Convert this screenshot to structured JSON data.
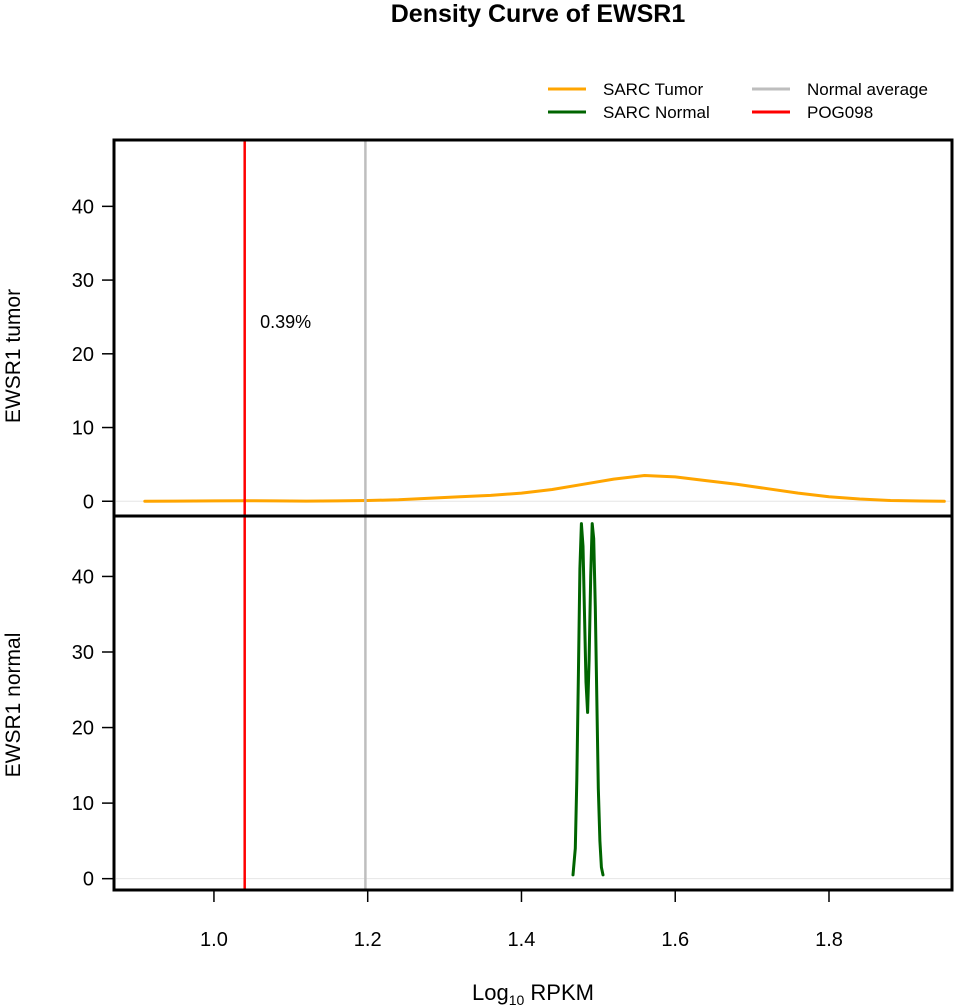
{
  "chart_data": {
    "type": "line",
    "title": "Density Curve of  EWSR1",
    "xlabel": {
      "base": "Log",
      "sub": "10",
      "rest": " RPKM"
    },
    "xlim": [
      0.87,
      1.96
    ],
    "x_ticks": [
      1.0,
      1.2,
      1.4,
      1.6,
      1.8
    ],
    "x_tick_labels": [
      "1.0",
      "1.2",
      "1.4",
      "1.6",
      "1.8"
    ],
    "legend": {
      "placement": "top-right",
      "items": [
        {
          "label": "SARC  Tumor",
          "color": "#FFA500"
        },
        {
          "label": "SARC  Normal",
          "color": "#006400"
        },
        {
          "label": "Normal  average",
          "color": "#BEBEBE"
        },
        {
          "label": "POG098",
          "color": "#FF0000"
        }
      ]
    },
    "vlines": [
      {
        "name": "Normal average",
        "x": 1.197,
        "color": "#BEBEBE"
      },
      {
        "name": "POG098",
        "x": 1.04,
        "color": "#FF0000"
      }
    ],
    "panels": [
      {
        "ylabel": "EWSR1  tumor",
        "ylim": [
          -2,
          49
        ],
        "y_ticks": [
          0,
          10,
          20,
          30,
          40
        ],
        "y_tick_labels": [
          "0",
          "10",
          "20",
          "30",
          "40"
        ],
        "annotation": {
          "text": "0.39%",
          "x": 1.06,
          "y": 23.5,
          "color": "#FF0000"
        },
        "series": [
          {
            "name": "SARC  Tumor",
            "color": "#FFA500",
            "x": [
              0.91,
              0.95,
              1.0,
              1.04,
              1.08,
              1.12,
              1.16,
              1.2,
              1.24,
              1.28,
              1.32,
              1.36,
              1.4,
              1.44,
              1.48,
              1.52,
              1.56,
              1.6,
              1.64,
              1.68,
              1.72,
              1.76,
              1.8,
              1.84,
              1.88,
              1.92,
              1.95
            ],
            "y": [
              0.0,
              0.02,
              0.05,
              0.07,
              0.05,
              0.02,
              0.05,
              0.1,
              0.2,
              0.4,
              0.6,
              0.8,
              1.1,
              1.6,
              2.3,
              3.0,
              3.5,
              3.3,
              2.8,
              2.3,
              1.7,
              1.1,
              0.6,
              0.3,
              0.1,
              0.03,
              0.0
            ]
          }
        ]
      },
      {
        "ylabel": "EWSR1  normal",
        "ylim": [
          -1.5,
          48
        ],
        "y_ticks": [
          0,
          10,
          20,
          30,
          40
        ],
        "y_tick_labels": [
          "0",
          "10",
          "20",
          "30",
          "40"
        ],
        "series": [
          {
            "name": "SARC  Normal",
            "color": "#006400",
            "x": [
              1.467,
              1.47,
              1.472,
              1.474,
              1.476,
              1.478,
              1.48,
              1.482,
              1.484,
              1.486,
              1.488,
              1.49,
              1.492,
              1.494,
              1.496,
              1.498,
              1.5,
              1.502,
              1.504,
              1.506
            ],
            "y": [
              0.5,
              4,
              13,
              27,
              41,
              47,
              44,
              35,
              26,
              22,
              29,
              40,
              47,
              45,
              36,
              24,
              12,
              5,
              1.5,
              0.5
            ]
          }
        ]
      }
    ]
  }
}
